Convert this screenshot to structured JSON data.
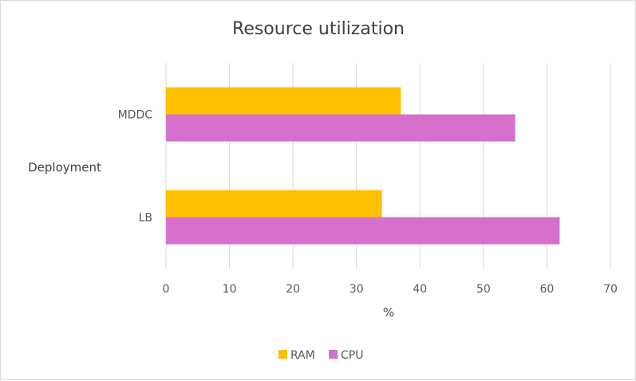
{
  "chart_data": {
    "type": "bar",
    "orientation": "horizontal",
    "title": "Resource utilization",
    "xlabel": "%",
    "ylabel": "Deployment",
    "categories": [
      "MDDC",
      "LB"
    ],
    "series": [
      {
        "name": "RAM",
        "values": [
          37,
          34
        ],
        "color": "#ffc000"
      },
      {
        "name": "CPU",
        "values": [
          55,
          62
        ],
        "color": "#d670cc"
      }
    ],
    "xlim": [
      0,
      70
    ],
    "xticks": [
      0,
      10,
      20,
      30,
      40,
      50,
      60,
      70
    ],
    "grid": true,
    "legend": "bottom"
  }
}
